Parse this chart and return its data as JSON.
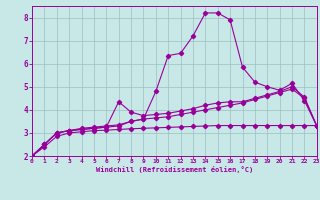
{
  "x": [
    0,
    1,
    2,
    3,
    4,
    5,
    6,
    7,
    8,
    9,
    10,
    11,
    12,
    13,
    14,
    15,
    16,
    17,
    18,
    19,
    20,
    21,
    22,
    23
  ],
  "line_peak": [
    2.0,
    2.5,
    3.0,
    3.1,
    3.2,
    3.25,
    3.3,
    3.35,
    3.5,
    3.6,
    4.8,
    6.35,
    6.45,
    7.2,
    8.2,
    8.2,
    7.9,
    5.85,
    5.2,
    5.0,
    4.85,
    5.15,
    4.4,
    3.3
  ],
  "line_mid1": [
    2.0,
    2.5,
    3.0,
    3.1,
    3.15,
    3.2,
    3.25,
    4.35,
    3.9,
    3.75,
    3.8,
    3.85,
    3.95,
    4.05,
    4.2,
    4.3,
    4.35,
    4.35,
    4.5,
    4.65,
    4.8,
    5.0,
    4.55,
    3.3
  ],
  "line_mid2": [
    2.0,
    2.5,
    3.0,
    3.1,
    3.15,
    3.2,
    3.25,
    3.3,
    3.5,
    3.6,
    3.65,
    3.7,
    3.8,
    3.9,
    4.0,
    4.1,
    4.2,
    4.3,
    4.45,
    4.6,
    4.75,
    4.9,
    4.5,
    3.3
  ],
  "line_flat": [
    2.0,
    2.4,
    2.85,
    3.0,
    3.05,
    3.1,
    3.12,
    3.15,
    3.18,
    3.2,
    3.22,
    3.24,
    3.26,
    3.28,
    3.3,
    3.32,
    3.32,
    3.32,
    3.32,
    3.32,
    3.32,
    3.32,
    3.32,
    3.32
  ],
  "line_color": "#990099",
  "bg_color": "#c8e8e8",
  "grid_color": "#9bbfbf",
  "xlabel": "Windchill (Refroidissement éolien,°C)",
  "xlim": [
    0,
    23
  ],
  "ylim": [
    2,
    8.5
  ],
  "yticks": [
    2,
    3,
    4,
    5,
    6,
    7,
    8
  ],
  "xticks": [
    0,
    1,
    2,
    3,
    4,
    5,
    6,
    7,
    8,
    9,
    10,
    11,
    12,
    13,
    14,
    15,
    16,
    17,
    18,
    19,
    20,
    21,
    22,
    23
  ]
}
